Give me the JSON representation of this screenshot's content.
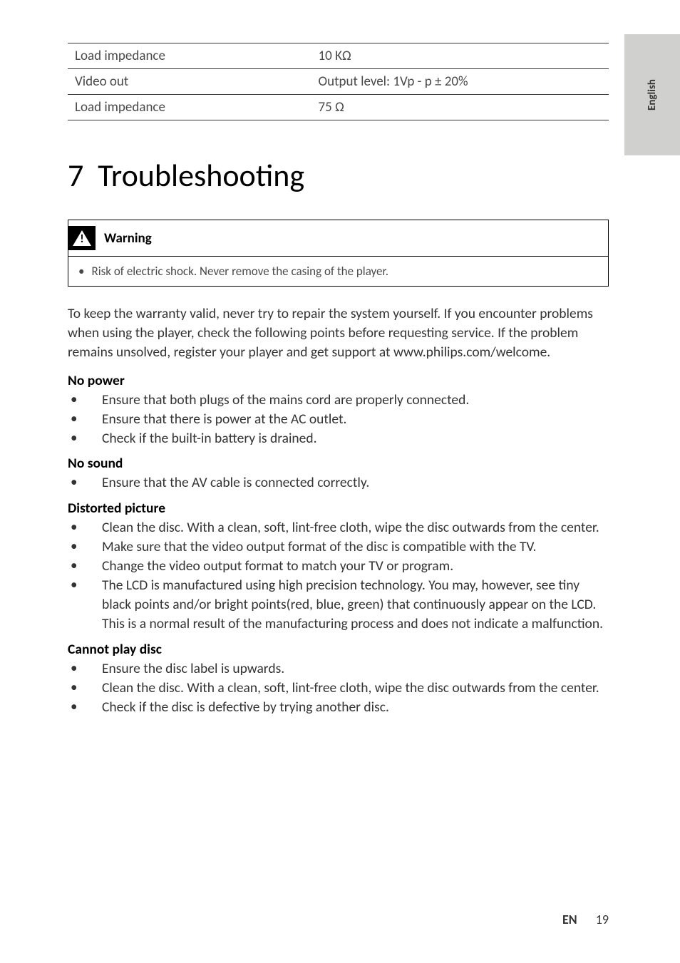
{
  "side_tab": {
    "label": "English"
  },
  "specs_table": {
    "rows": [
      {
        "label": "Load impedance",
        "value": "10 KΩ"
      },
      {
        "label": "Video out",
        "value": "Output level: 1Vp - p ± 20%"
      },
      {
        "label": "Load impedance",
        "value": "75 Ω"
      }
    ]
  },
  "section": {
    "number": "7",
    "title": "Troubleshooting"
  },
  "warning": {
    "label": "Warning",
    "text": "Risk of electric shock. Never remove the casing of the player."
  },
  "intro": "To keep the warranty valid, never try to repair the system yourself.\nIf you encounter problems when using the player, check the following points before requesting service. If the problem remains unsolved, register your player and get support at www.philips.com/welcome.",
  "subsections": [
    {
      "title": "No power",
      "items": [
        "Ensure that both plugs of the mains cord are properly connected.",
        "Ensure that there is power at the AC outlet.",
        "Check if the built-in battery is drained."
      ]
    },
    {
      "title": "No sound",
      "items": [
        "Ensure that the AV cable is connected correctly."
      ]
    },
    {
      "title": "Distorted picture",
      "items": [
        "Clean the disc. With a clean, soft, lint-free cloth, wipe the disc outwards from the center.",
        "Make sure that the video output format of the disc is compatible with the TV.",
        "Change the video output format to match your TV or program.",
        "The LCD is manufactured using high precision technology. You may, however, see tiny black points and/or bright points(red, blue, green) that continuously appear on the LCD. This is a normal result of the manufacturing process and does not indicate a malfunction."
      ]
    },
    {
      "title": "Cannot play disc",
      "items": [
        "Ensure the disc label is upwards.",
        "Clean the disc. With a clean, soft, lint-free cloth, wipe the disc outwards from the center.",
        "Check if the disc is defective by trying another disc."
      ]
    }
  ],
  "footer": {
    "lang": "EN",
    "page": "19"
  }
}
